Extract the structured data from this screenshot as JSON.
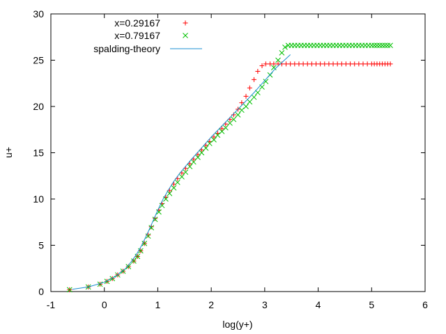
{
  "chart_data": {
    "type": "scatter",
    "xlabel": "log(y+)",
    "ylabel": "u+",
    "xlim": [
      -1,
      6
    ],
    "ylim": [
      0,
      30
    ],
    "xticks": [
      "-1",
      "0",
      "1",
      "2",
      "3",
      "4",
      "5",
      "6"
    ],
    "yticks": [
      "0",
      "5",
      "10",
      "15",
      "20",
      "25",
      "30"
    ],
    "grid": false,
    "legend_position": "top-left",
    "series": [
      {
        "name": "x=0.29167",
        "marker": "plus",
        "color": "#ff0000",
        "x": [
          -0.65,
          -0.3,
          -0.08,
          0.05,
          0.15,
          0.25,
          0.35,
          0.45,
          0.55,
          0.62,
          0.68,
          0.75,
          0.82,
          0.88,
          0.95,
          1.02,
          1.08,
          1.15,
          1.22,
          1.3,
          1.37,
          1.45,
          1.52,
          1.6,
          1.67,
          1.75,
          1.82,
          1.9,
          1.97,
          2.05,
          2.12,
          2.2,
          2.27,
          2.35,
          2.42,
          2.5,
          2.57,
          2.65,
          2.72,
          2.8,
          2.87,
          2.95,
          3.02,
          3.1,
          3.17,
          3.25,
          3.32,
          3.4,
          3.48,
          3.56,
          3.64,
          3.72,
          3.8,
          3.88,
          3.96,
          4.04,
          4.12,
          4.2,
          4.28,
          4.36,
          4.44,
          4.52,
          4.6,
          4.68,
          4.76,
          4.84,
          4.92,
          5.0,
          5.05,
          5.1,
          5.15,
          5.2,
          5.25,
          5.3,
          5.35
        ],
        "y": [
          0.2,
          0.5,
          0.8,
          1.1,
          1.4,
          1.8,
          2.2,
          2.7,
          3.3,
          3.8,
          4.4,
          5.2,
          6.1,
          7.0,
          7.9,
          8.8,
          9.5,
          10.2,
          10.9,
          11.6,
          12.2,
          12.8,
          13.3,
          13.8,
          14.3,
          14.8,
          15.3,
          15.8,
          16.2,
          16.7,
          17.1,
          17.6,
          18.1,
          18.6,
          19.1,
          19.7,
          20.4,
          21.1,
          22.0,
          22.9,
          23.8,
          24.4,
          24.6,
          24.6,
          24.6,
          24.6,
          24.6,
          24.6,
          24.6,
          24.6,
          24.6,
          24.6,
          24.6,
          24.6,
          24.6,
          24.6,
          24.6,
          24.6,
          24.6,
          24.6,
          24.6,
          24.6,
          24.6,
          24.6,
          24.6,
          24.6,
          24.6,
          24.6,
          24.6,
          24.6,
          24.6,
          24.6,
          24.6,
          24.6,
          24.6
        ]
      },
      {
        "name": "x=0.79167",
        "marker": "cross",
        "color": "#00c000",
        "x": [
          -0.65,
          -0.3,
          -0.08,
          0.05,
          0.15,
          0.25,
          0.35,
          0.45,
          0.55,
          0.62,
          0.68,
          0.75,
          0.82,
          0.88,
          0.95,
          1.02,
          1.08,
          1.15,
          1.22,
          1.3,
          1.37,
          1.45,
          1.52,
          1.6,
          1.67,
          1.75,
          1.82,
          1.9,
          1.97,
          2.05,
          2.12,
          2.2,
          2.27,
          2.35,
          2.42,
          2.5,
          2.57,
          2.65,
          2.72,
          2.8,
          2.87,
          2.95,
          3.02,
          3.1,
          3.17,
          3.25,
          3.32,
          3.38,
          3.44,
          3.5,
          3.56,
          3.62,
          3.68,
          3.74,
          3.8,
          3.86,
          3.92,
          3.98,
          4.04,
          4.1,
          4.16,
          4.22,
          4.28,
          4.34,
          4.4,
          4.46,
          4.52,
          4.58,
          4.64,
          4.7,
          4.76,
          4.82,
          4.88,
          4.94,
          5.0,
          5.05,
          5.1,
          5.15,
          5.2,
          5.25,
          5.3,
          5.35
        ],
        "y": [
          0.2,
          0.5,
          0.8,
          1.1,
          1.4,
          1.8,
          2.2,
          2.7,
          3.3,
          3.8,
          4.4,
          5.2,
          6.0,
          6.9,
          7.8,
          8.6,
          9.3,
          10.0,
          10.6,
          11.2,
          11.8,
          12.4,
          12.9,
          13.5,
          14.0,
          14.5,
          15.0,
          15.5,
          16.0,
          16.4,
          16.9,
          17.3,
          17.7,
          18.2,
          18.6,
          19.1,
          19.6,
          20.0,
          20.5,
          21.0,
          21.5,
          22.1,
          22.7,
          23.4,
          24.2,
          25.0,
          25.8,
          26.4,
          26.6,
          26.6,
          26.6,
          26.6,
          26.6,
          26.6,
          26.6,
          26.6,
          26.6,
          26.6,
          26.6,
          26.6,
          26.6,
          26.6,
          26.6,
          26.6,
          26.6,
          26.6,
          26.6,
          26.6,
          26.6,
          26.6,
          26.6,
          26.6,
          26.6,
          26.6,
          26.6,
          26.6,
          26.6,
          26.6,
          26.6,
          26.6,
          26.6,
          26.6
        ]
      },
      {
        "name": "spalding-theory",
        "marker": "line",
        "color": "#1a8fd0",
        "x": [
          -0.6,
          -0.3,
          0.0,
          0.2,
          0.4,
          0.5,
          0.6,
          0.7,
          0.8,
          0.9,
          1.0,
          1.1,
          1.2,
          1.3,
          1.4,
          1.5,
          1.6,
          1.8,
          2.0,
          2.2,
          2.4,
          2.6,
          2.8,
          3.0,
          3.2,
          3.48
        ],
        "y": [
          0.25,
          0.5,
          1.0,
          1.6,
          2.5,
          3.2,
          4.0,
          5.0,
          6.2,
          7.5,
          8.8,
          10.0,
          11.0,
          11.9,
          12.7,
          13.4,
          14.1,
          15.4,
          16.7,
          17.9,
          19.1,
          20.3,
          21.5,
          22.8,
          24.1,
          25.6
        ]
      }
    ]
  }
}
